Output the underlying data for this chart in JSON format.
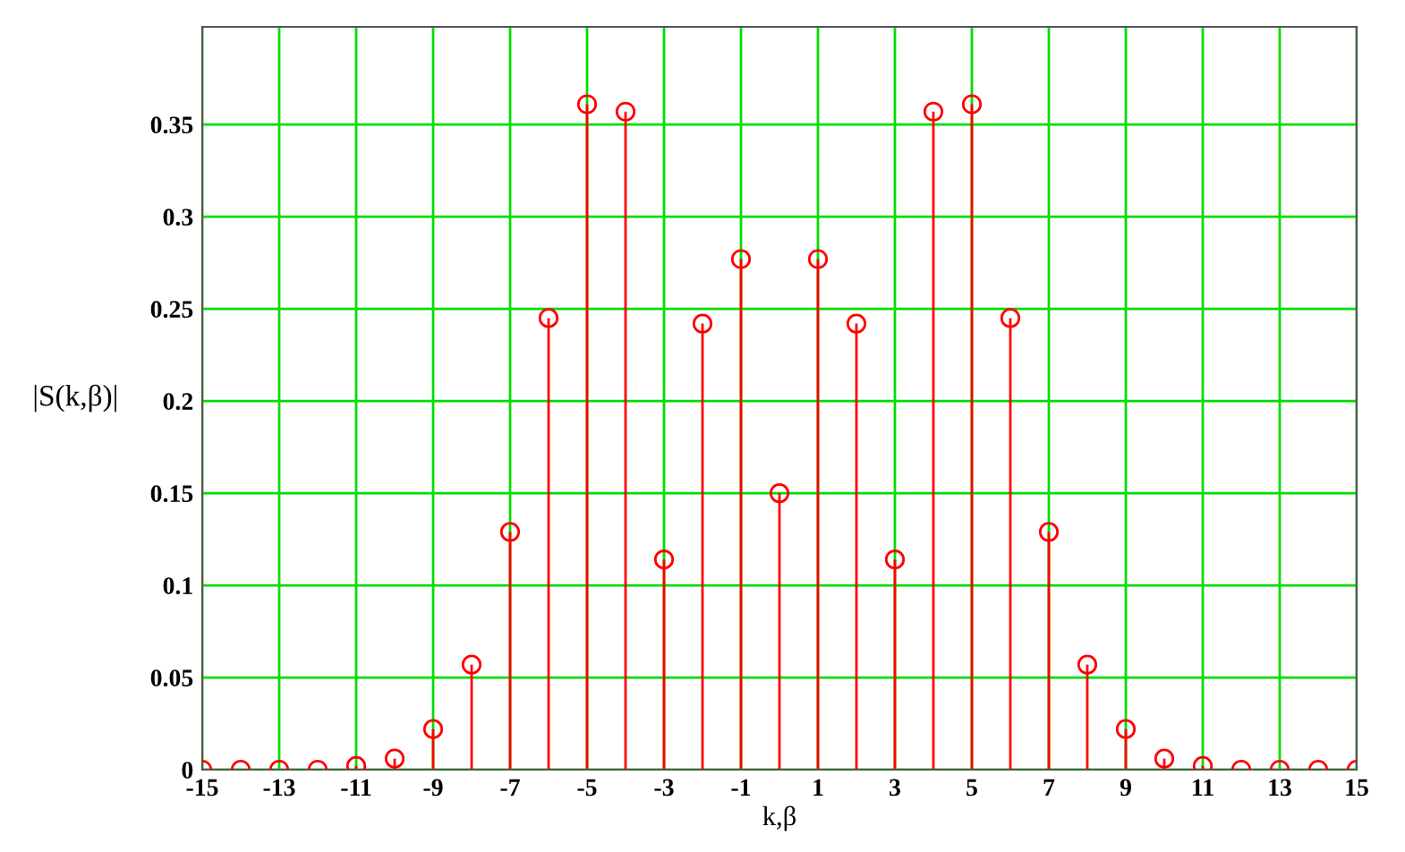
{
  "chart_data": {
    "type": "lollipop",
    "xlabel": "k,β",
    "ylabel": "|S(k,β)|",
    "x": [
      -15,
      -14,
      -13,
      -12,
      -11,
      -10,
      -9,
      -8,
      -7,
      -6,
      -5,
      -4,
      -3,
      -2,
      -1,
      0,
      1,
      2,
      3,
      4,
      5,
      6,
      7,
      8,
      9,
      10,
      11,
      12,
      13,
      14,
      15
    ],
    "series": [
      {
        "color": "#ff0000",
        "values": [
          0,
          0,
          0,
          0,
          0.002,
          0.006,
          0.022,
          0.057,
          0.129,
          0.245,
          0.361,
          0.357,
          0.114,
          0.242,
          0.277,
          0.15,
          0.277,
          0.242,
          0.114,
          0.357,
          0.361,
          0.245,
          0.129,
          0.057,
          0.022,
          0.006,
          0.002,
          0,
          0,
          0,
          0
        ]
      }
    ],
    "xlim": [
      -15,
      15
    ],
    "xticks": [
      -15,
      -13,
      -11,
      -9,
      -7,
      -5,
      -3,
      -1,
      1,
      3,
      5,
      7,
      9,
      11,
      13,
      15
    ],
    "ylim": [
      0,
      0.403
    ],
    "yticks": [
      0,
      0.05,
      0.1,
      0.15,
      0.2,
      0.25,
      0.3,
      0.35
    ],
    "grid": true,
    "marker": "circle",
    "legend": false
  }
}
